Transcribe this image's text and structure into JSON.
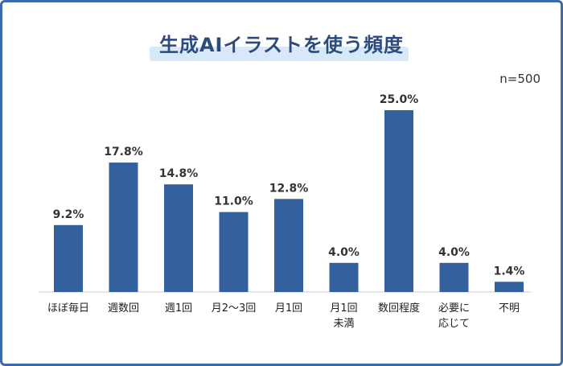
{
  "title": "生成AIイラストを使う頻度",
  "sample_note": "n=500",
  "chart_data": {
    "type": "bar",
    "title": "生成AIイラストを使う頻度",
    "categories": [
      [
        "ほぼ毎日"
      ],
      [
        "週数回"
      ],
      [
        "週1回"
      ],
      [
        "月2～3回"
      ],
      [
        "月1回"
      ],
      [
        "月1回",
        "未満"
      ],
      [
        "数回程度"
      ],
      [
        "必要に",
        "応じて"
      ],
      [
        "不明"
      ]
    ],
    "values": [
      9.2,
      17.8,
      14.8,
      11.0,
      12.8,
      4.0,
      25.0,
      4.0,
      1.4
    ],
    "value_labels": [
      "9.2%",
      "17.8%",
      "14.8%",
      "11.0%",
      "12.8%",
      "4.0%",
      "25.0%",
      "4.0%",
      "1.4%"
    ],
    "ylim": [
      0,
      25
    ],
    "bar_color": "#34609e",
    "grid": false,
    "xlabel": "",
    "ylabel": ""
  }
}
